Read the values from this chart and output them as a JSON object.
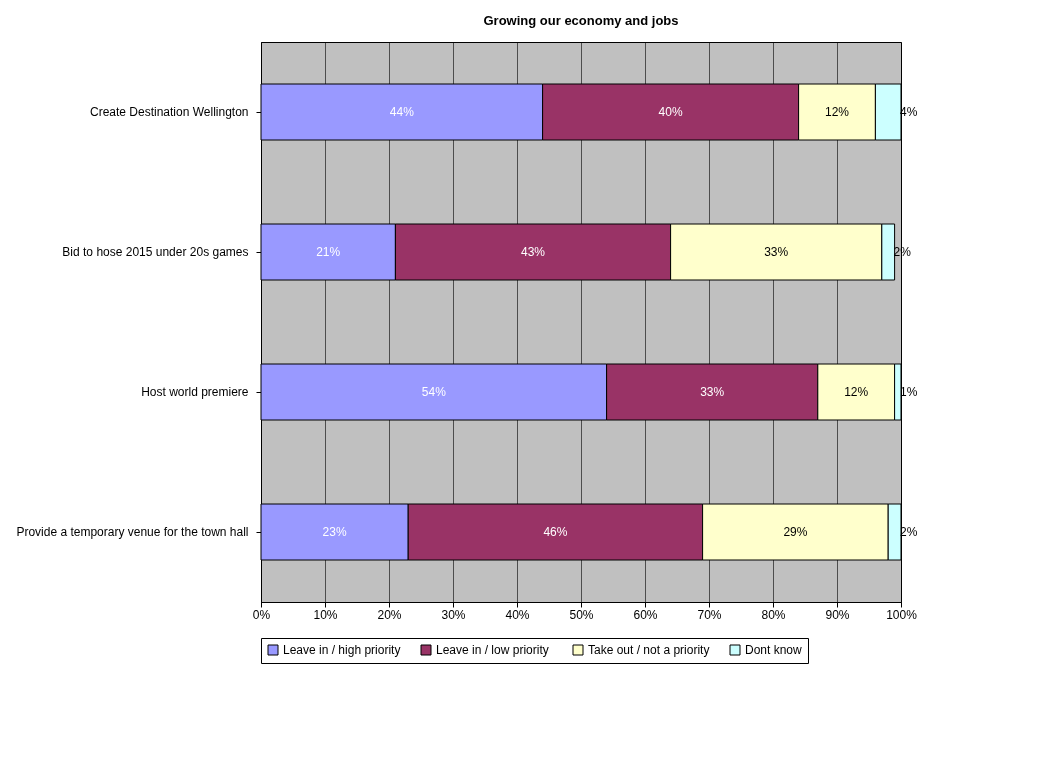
{
  "chart_data": {
    "type": "bar",
    "orientation": "horizontal",
    "stacked": true,
    "title": "Growing our economy and jobs",
    "categories": [
      "Create Destination Wellington",
      "Bid to hose 2015 under 20s games",
      "Host world premiere",
      "Provide a temporary venue for the town hall"
    ],
    "series": [
      {
        "name": "Leave in / high priority",
        "color": "#9999ff",
        "values": [
          44,
          21,
          54,
          23
        ],
        "value_labels": [
          "44%",
          "21%",
          "54%",
          "23%"
        ]
      },
      {
        "name": "Leave in / low  priority",
        "color": "#993366",
        "values": [
          40,
          43,
          33,
          46
        ],
        "value_labels": [
          "40%",
          "43%",
          "33%",
          "46%"
        ]
      },
      {
        "name": "Take out / not a priority",
        "color": "#ffffcc",
        "values": [
          12,
          33,
          12,
          29
        ],
        "value_labels": [
          "12%",
          "33%",
          "12%",
          "29%"
        ]
      },
      {
        "name": "Dont know",
        "color": "#ccffff",
        "values": [
          4,
          2,
          1,
          2
        ],
        "value_labels": [
          "4%",
          "2%",
          "1%",
          "2%"
        ]
      }
    ],
    "xlim": [
      0,
      100
    ],
    "xticks": [
      {
        "value": 0,
        "label": "0%"
      },
      {
        "value": 10,
        "label": "10%"
      },
      {
        "value": 20,
        "label": "20%"
      },
      {
        "value": 30,
        "label": "30%"
      },
      {
        "value": 40,
        "label": "40%"
      },
      {
        "value": 50,
        "label": "50%"
      },
      {
        "value": 60,
        "label": "60%"
      },
      {
        "value": 70,
        "label": "70%"
      },
      {
        "value": 80,
        "label": "80%"
      },
      {
        "value": 90,
        "label": "90%"
      },
      {
        "value": 100,
        "label": "100%"
      }
    ],
    "grid": "x",
    "legend": "bottom"
  }
}
